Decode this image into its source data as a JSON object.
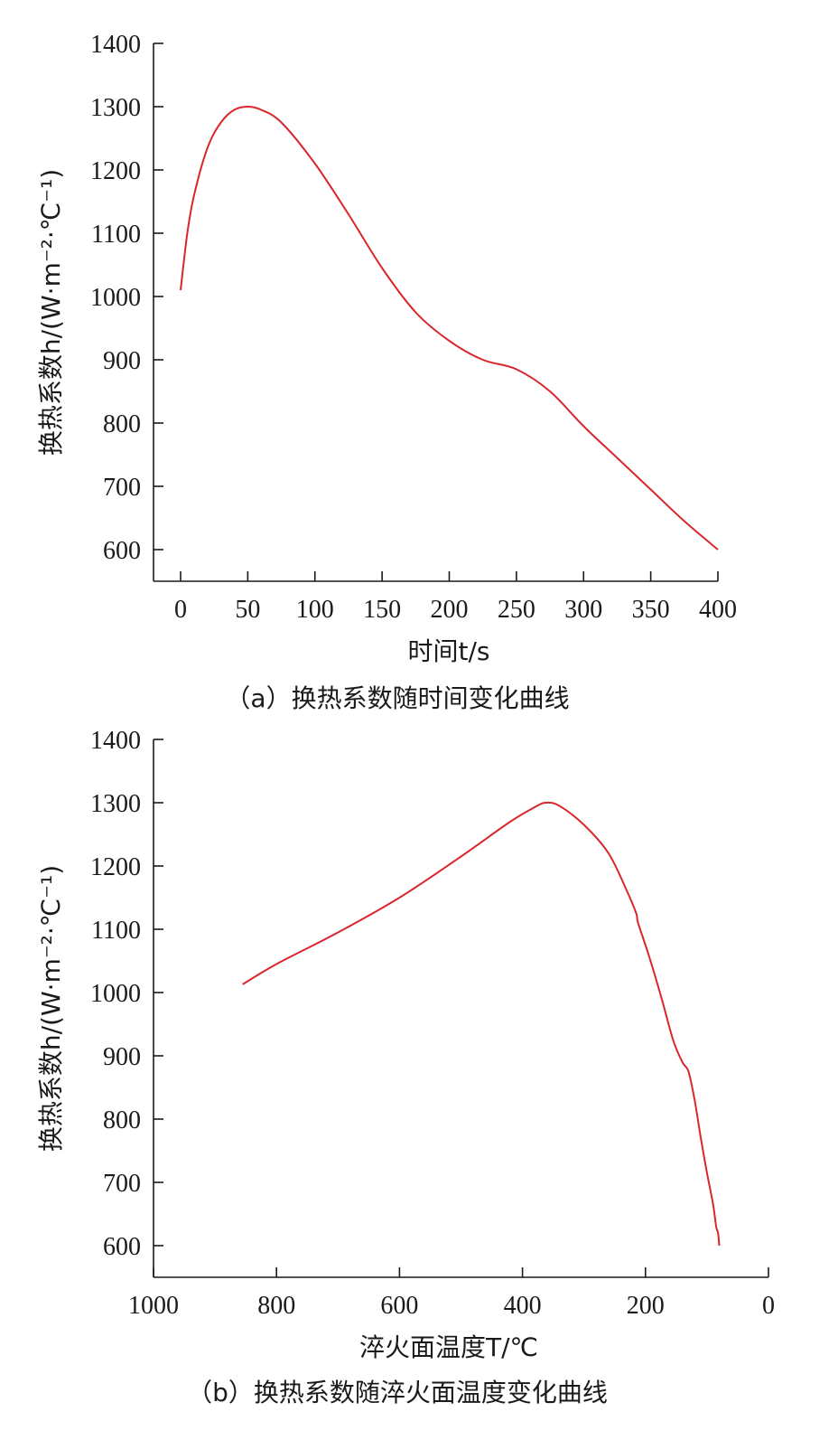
{
  "chart_data": [
    {
      "type": "line",
      "caption": "（a）换热系数随时间变化曲线",
      "xlabel": "时间t/s",
      "ylabel": "换热系数h/(W·m⁻²·℃⁻¹)",
      "xlim": [
        0,
        400
      ],
      "ylim": [
        550,
        1400
      ],
      "xticks": [
        0,
        50,
        100,
        150,
        200,
        250,
        300,
        350,
        400
      ],
      "xtick_labels": [
        "0",
        "50",
        "100",
        "150",
        "200",
        "250",
        "300",
        "350",
        "400"
      ],
      "yticks": [
        600,
        700,
        800,
        900,
        1000,
        1100,
        1200,
        1300,
        1400
      ],
      "ytick_labels": [
        "600",
        "700",
        "800",
        "900",
        "1000",
        "1100",
        "1200",
        "1300",
        "1400"
      ],
      "grid": false,
      "color": "#d9262b",
      "x": [
        0,
        5,
        10,
        20,
        30,
        40,
        50,
        60,
        75,
        100,
        125,
        150,
        175,
        200,
        225,
        250,
        275,
        300,
        325,
        350,
        375,
        400
      ],
      "y": [
        1010,
        1100,
        1160,
        1235,
        1275,
        1295,
        1300,
        1295,
        1275,
        1210,
        1130,
        1045,
        975,
        930,
        900,
        885,
        850,
        795,
        745,
        695,
        645,
        600
      ]
    },
    {
      "type": "line",
      "caption": "（b）换热系数随淬火面温度变化曲线",
      "xlabel": "淬火面温度T/℃",
      "ylabel": "换热系数h/(W·m⁻²·℃⁻¹)",
      "xlim": [
        1000,
        0
      ],
      "ylim": [
        550,
        1400
      ],
      "xticks": [
        1000,
        800,
        600,
        400,
        200,
        0
      ],
      "xtick_labels": [
        "1000",
        "800",
        "600",
        "400",
        "200",
        "0"
      ],
      "yticks": [
        600,
        700,
        800,
        900,
        1000,
        1100,
        1200,
        1300,
        1400
      ],
      "ytick_labels": [
        "600",
        "700",
        "800",
        "900",
        "1000",
        "1100",
        "1200",
        "1300",
        "1400"
      ],
      "grid": false,
      "color": "#d9262b",
      "x": [
        855,
        800,
        700,
        600,
        500,
        420,
        380,
        362,
        340,
        300,
        260,
        230,
        215,
        212,
        195,
        175,
        155,
        140,
        130,
        120,
        110,
        100,
        90,
        85,
        82,
        80
      ],
      "y": [
        1013,
        1045,
        1095,
        1150,
        1215,
        1270,
        1293,
        1300,
        1295,
        1265,
        1220,
        1160,
        1125,
        1110,
        1060,
        995,
        925,
        890,
        875,
        830,
        770,
        715,
        665,
        630,
        620,
        600
      ]
    }
  ]
}
